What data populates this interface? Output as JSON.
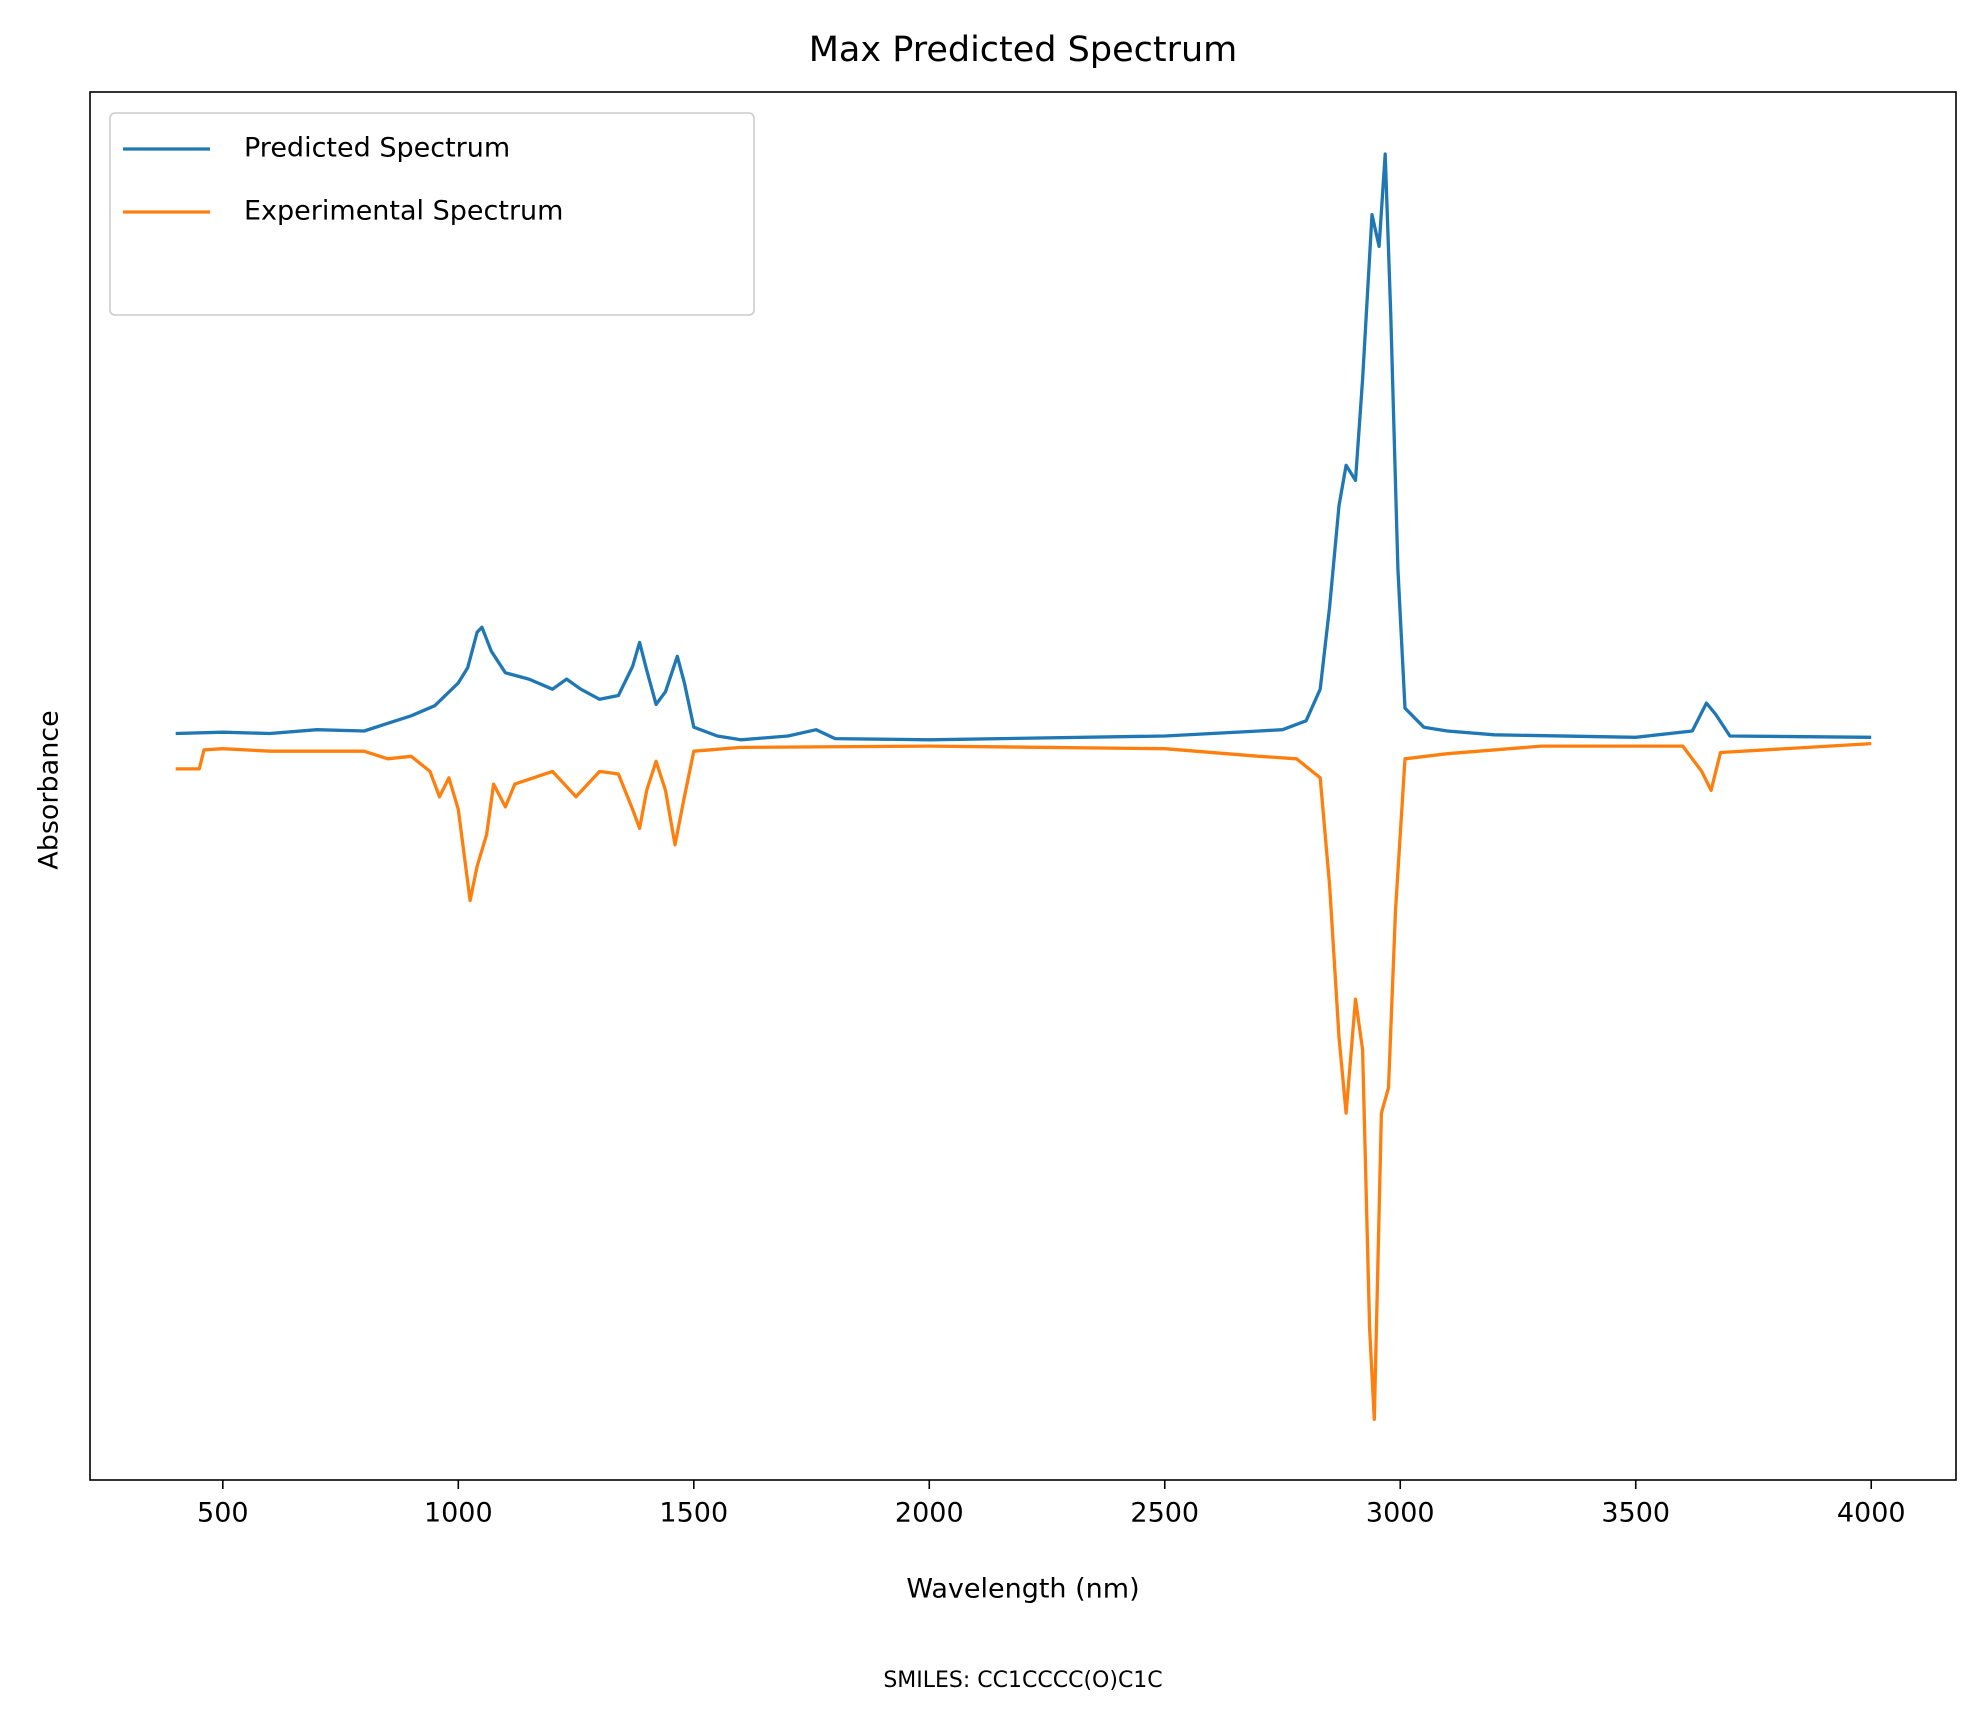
{
  "chart_data": {
    "type": "line",
    "title": "Max Predicted Spectrum",
    "xlabel": "Wavelength (nm)",
    "ylabel": "Absorbance",
    "annotation": "SMILES: CC1CCCC(O)C1C",
    "xlim": [
      218,
      4180
    ],
    "ylim": [
      -1.16,
      1.034
    ],
    "xticks": [
      500,
      1000,
      1500,
      2000,
      2500,
      3000,
      3500,
      4000
    ],
    "legend": "upper left",
    "series": [
      {
        "name": "Predicted Spectrum",
        "color": "#1f77b4",
        "x": [
          400,
          500,
          600,
          700,
          800,
          900,
          950,
          1000,
          1020,
          1040,
          1050,
          1070,
          1100,
          1150,
          1200,
          1230,
          1260,
          1300,
          1340,
          1370,
          1385,
          1400,
          1420,
          1440,
          1465,
          1480,
          1500,
          1550,
          1600,
          1700,
          1760,
          1800,
          2000,
          2500,
          2700,
          2750,
          2800,
          2830,
          2850,
          2870,
          2885,
          2905,
          2920,
          2940,
          2955,
          2968,
          2980,
          2995,
          3010,
          3050,
          3100,
          3200,
          3500,
          3620,
          3650,
          3670,
          3700,
          4000
        ],
        "values": [
          0.02,
          0.022,
          0.02,
          0.026,
          0.024,
          0.048,
          0.064,
          0.1,
          0.124,
          0.18,
          0.188,
          0.15,
          0.116,
          0.106,
          0.09,
          0.106,
          0.09,
          0.074,
          0.08,
          0.126,
          0.164,
          0.12,
          0.066,
          0.086,
          0.142,
          0.1,
          0.03,
          0.016,
          0.01,
          0.016,
          0.026,
          0.012,
          0.01,
          0.016,
          0.024,
          0.026,
          0.04,
          0.09,
          0.22,
          0.38,
          0.444,
          0.42,
          0.58,
          0.84,
          0.79,
          0.936,
          0.68,
          0.28,
          0.06,
          0.03,
          0.024,
          0.018,
          0.014,
          0.024,
          0.068,
          0.05,
          0.016,
          0.014
        ]
      },
      {
        "name": "Experimental Spectrum",
        "color": "#ff7f0e",
        "x": [
          400,
          450,
          460,
          500,
          600,
          800,
          850,
          900,
          940,
          960,
          980,
          1000,
          1025,
          1040,
          1060,
          1075,
          1100,
          1120,
          1200,
          1250,
          1300,
          1340,
          1370,
          1385,
          1400,
          1420,
          1440,
          1460,
          1480,
          1500,
          1600,
          2000,
          2500,
          2700,
          2780,
          2830,
          2850,
          2870,
          2885,
          2905,
          2920,
          2935,
          2945,
          2960,
          2975,
          2990,
          3010,
          3100,
          3300,
          3600,
          3640,
          3660,
          3680,
          4000
        ],
        "values": [
          -0.036,
          -0.036,
          -0.006,
          -0.004,
          -0.008,
          -0.008,
          -0.02,
          -0.016,
          -0.04,
          -0.08,
          -0.05,
          -0.1,
          -0.244,
          -0.19,
          -0.14,
          -0.06,
          -0.096,
          -0.06,
          -0.04,
          -0.08,
          -0.04,
          -0.044,
          -0.1,
          -0.13,
          -0.07,
          -0.024,
          -0.07,
          -0.156,
          -0.08,
          -0.008,
          -0.002,
          0,
          -0.004,
          -0.016,
          -0.02,
          -0.05,
          -0.22,
          -0.46,
          -0.58,
          -0.4,
          -0.48,
          -0.92,
          -1.064,
          -0.58,
          -0.54,
          -0.26,
          -0.02,
          -0.012,
          0,
          0,
          -0.04,
          -0.07,
          -0.01,
          0.004
        ]
      }
    ]
  }
}
